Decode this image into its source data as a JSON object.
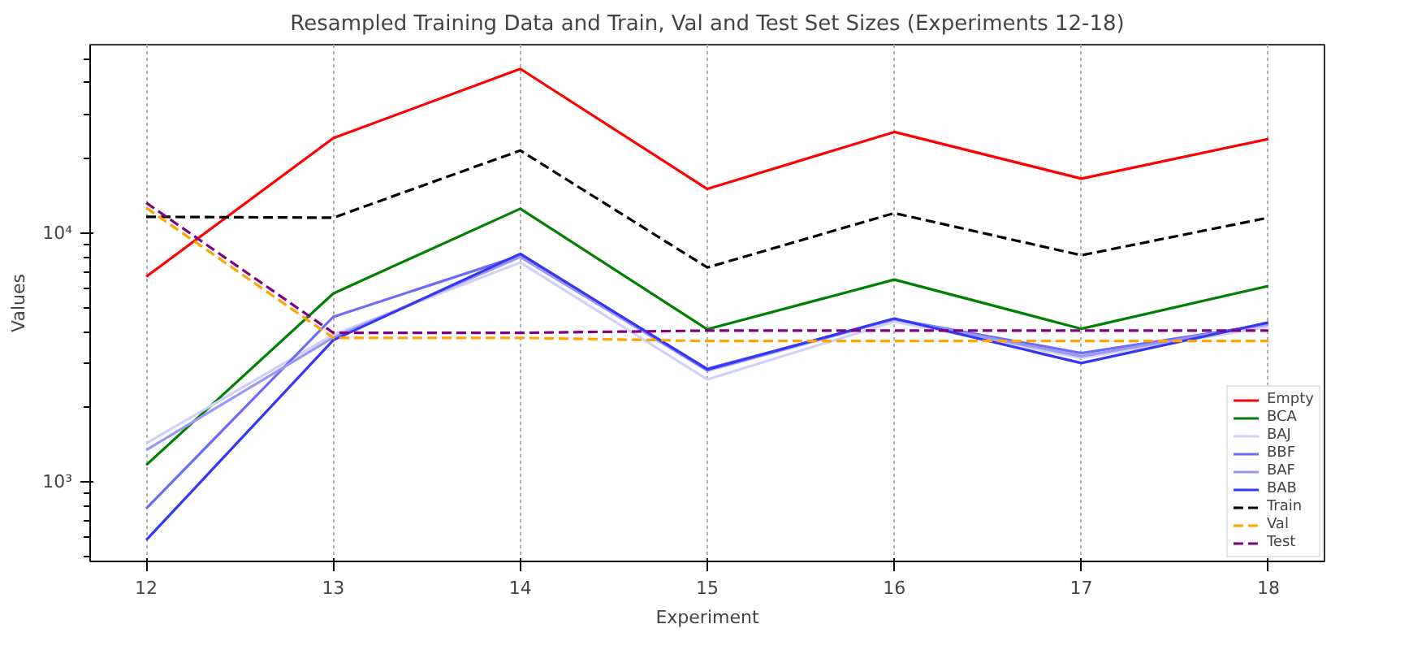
{
  "chart_data": {
    "type": "line",
    "title": "Resampled Training Data and Train, Val and Test Set Sizes (Experiments 12-18)",
    "xlabel": "Experiment",
    "ylabel": "Values",
    "x": [
      12,
      13,
      14,
      15,
      16,
      17,
      18
    ],
    "series": [
      {
        "name": "Empty",
        "color": "#ff0000",
        "line_style": "solid",
        "values": [
          6670,
          24000,
          45500,
          15000,
          25400,
          16500,
          23800
        ]
      },
      {
        "name": "BCA",
        "color": "#008000",
        "line_style": "solid",
        "values": [
          1170,
          5710,
          12500,
          4100,
          6490,
          4120,
          6120
        ]
      },
      {
        "name": "BAJ",
        "color": "#d0d0fa",
        "line_style": "solid",
        "values": [
          1430,
          3900,
          7600,
          2580,
          4400,
          3150,
          4200
        ]
      },
      {
        "name": "BBF",
        "color": "#6b6bf7",
        "line_style": "solid",
        "values": [
          783,
          4600,
          8100,
          2850,
          4500,
          3290,
          4300
        ]
      },
      {
        "name": "BAF",
        "color": "#9999f5",
        "line_style": "solid",
        "values": [
          1345,
          3800,
          8000,
          2800,
          4500,
          3200,
          4300
        ]
      },
      {
        "name": "BAB",
        "color": "#3535f5",
        "line_style": "solid",
        "values": [
          585,
          3710,
          8240,
          2830,
          4530,
          3000,
          4370
        ]
      },
      {
        "name": "Train",
        "color": "#000000",
        "line_style": "dashed",
        "values": [
          11600,
          11500,
          21400,
          7260,
          12000,
          8130,
          11500
        ]
      },
      {
        "name": "Val",
        "color": "#ffa500",
        "line_style": "dashed",
        "values": [
          12600,
          3790,
          3790,
          3680,
          3680,
          3680,
          3680
        ]
      },
      {
        "name": "Test",
        "color": "#800080",
        "line_style": "dashed",
        "values": [
          13200,
          3970,
          3970,
          4050,
          4050,
          4050,
          4050
        ]
      }
    ],
    "xlim": [
      11.7,
      18.3
    ],
    "xticks": [
      12,
      13,
      14,
      15,
      16,
      17,
      18
    ],
    "ylim": [
      480,
      56900
    ],
    "yticks": [
      {
        "value": 1000,
        "label": "10³"
      },
      {
        "value": 10000,
        "label": "10⁴"
      }
    ],
    "log": "y",
    "grid": "x",
    "legend": "right",
    "marker": "none"
  }
}
